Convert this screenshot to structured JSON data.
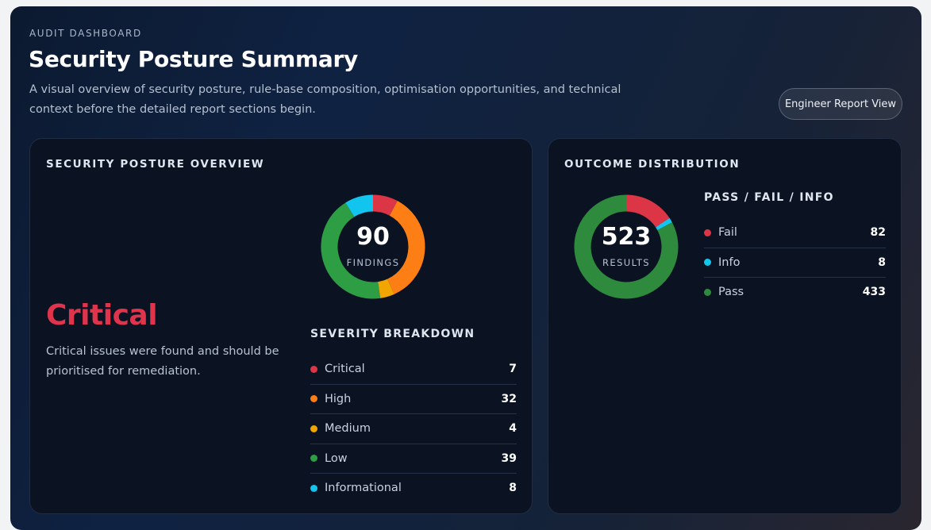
{
  "header": {
    "eyebrow": "AUDIT DASHBOARD",
    "title": "Security Posture Summary",
    "subtitle": "A visual overview of security posture, rule-base composition, optimisation opportunities, and technical context before the detailed report sections begin.",
    "engineer_button": "Engineer Report View"
  },
  "posture": {
    "card_title": "SECURITY POSTURE OVERVIEW",
    "total": "90",
    "total_label": "FINDINGS",
    "level": "Critical",
    "level_color": "#e0344c",
    "level_description": "Critical issues were found and should be prioritised for remediation.",
    "breakdown_heading": "SEVERITY BREAKDOWN",
    "severities": [
      {
        "label": "Critical",
        "value": "7",
        "count": 7,
        "color": "#dc3545"
      },
      {
        "label": "High",
        "value": "32",
        "count": 32,
        "color": "#fd7e14"
      },
      {
        "label": "Medium",
        "value": "4",
        "count": 4,
        "color": "#f0a500"
      },
      {
        "label": "Low",
        "value": "39",
        "count": 39,
        "color": "#2e9e44"
      },
      {
        "label": "Informational",
        "value": "8",
        "count": 8,
        "color": "#12c5ee"
      }
    ]
  },
  "outcome": {
    "card_title": "OUTCOME DISTRIBUTION",
    "total": "523",
    "total_label": "RESULTS",
    "breakdown_heading": "PASS / FAIL / INFO",
    "items": [
      {
        "label": "Fail",
        "value": "82",
        "count": 82,
        "color": "#dc3545"
      },
      {
        "label": "Info",
        "value": "8",
        "count": 8,
        "color": "#12c5ee"
      },
      {
        "label": "Pass",
        "value": "433",
        "count": 433,
        "color": "#2e8b3e"
      }
    ]
  }
}
